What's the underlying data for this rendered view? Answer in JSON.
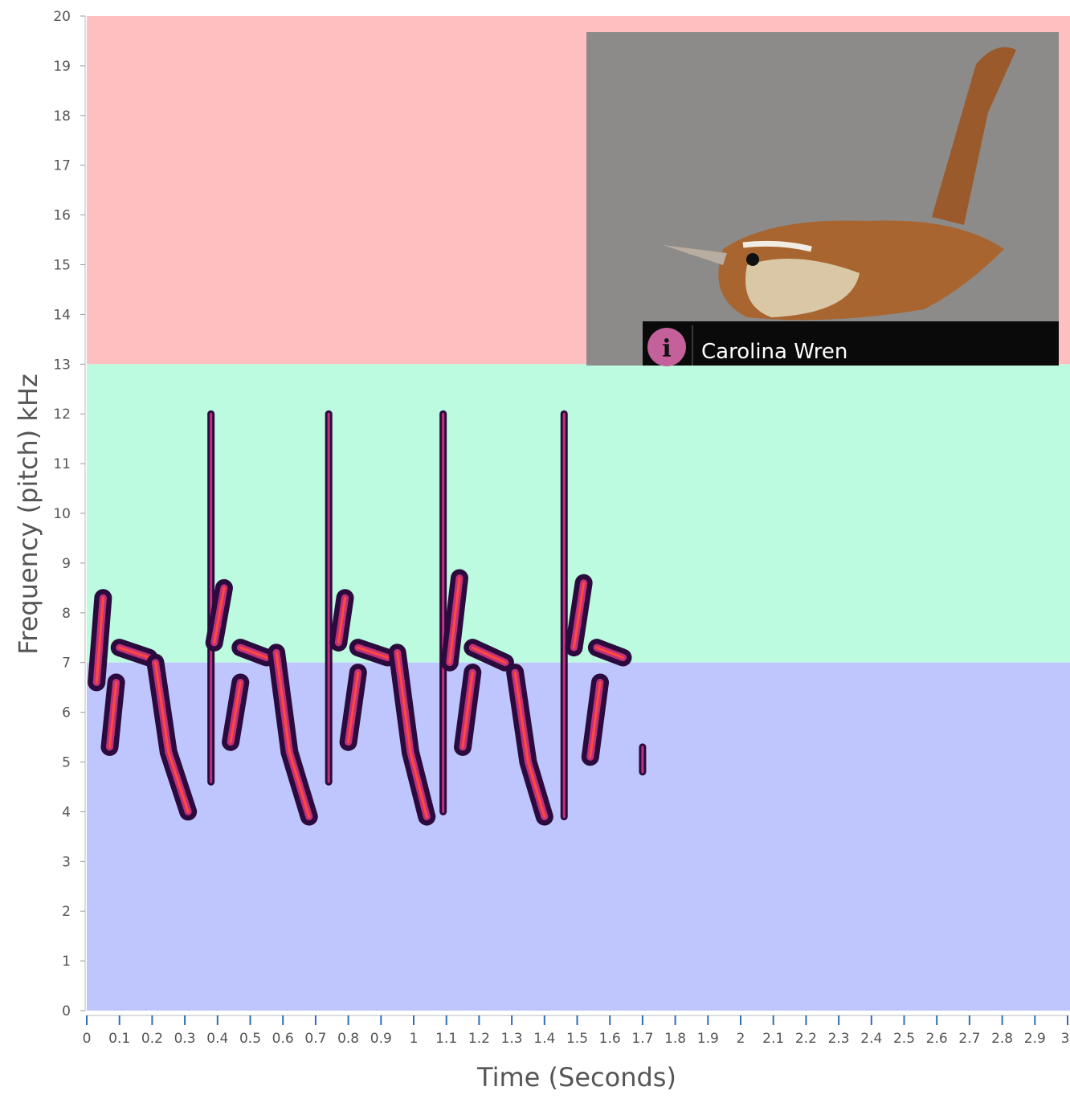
{
  "chart_data": {
    "type": "spectrogram",
    "x_label": "Time (Seconds)",
    "y_label": "Frequency (pitch) kHz",
    "xlim": [
      0,
      3
    ],
    "ylim": [
      0,
      20
    ],
    "xticks": [
      0,
      0.1,
      0.2,
      0.3,
      0.4,
      0.5,
      0.6,
      0.7,
      0.8,
      0.9,
      1,
      1.1,
      1.2,
      1.3,
      1.4,
      1.5,
      1.6,
      1.7,
      1.8,
      1.9,
      2,
      2.1,
      2.2,
      2.3,
      2.4,
      2.5,
      2.6,
      2.7,
      2.8,
      2.9,
      3
    ],
    "yticks": [
      0,
      1,
      2,
      3,
      4,
      5,
      6,
      7,
      8,
      9,
      10,
      11,
      12,
      13,
      14,
      15,
      16,
      17,
      18,
      19,
      20
    ],
    "bands": [
      {
        "from": 13,
        "to": 20,
        "color": "#fdbfbf"
      },
      {
        "from": 7,
        "to": 13,
        "color": "#bdfbe0"
      },
      {
        "from": 0,
        "to": 7,
        "color": "#bfc5fd"
      }
    ],
    "species": "Carolina Wren",
    "traces": [
      {
        "x": [
          0.03,
          0.05
        ],
        "y": [
          6.6,
          8.3
        ]
      },
      {
        "x": [
          0.1,
          0.19
        ],
        "y": [
          7.3,
          7.1
        ]
      },
      {
        "x": [
          0.09,
          0.07
        ],
        "y": [
          6.6,
          5.3
        ]
      },
      {
        "x": [
          0.21,
          0.25,
          0.31
        ],
        "y": [
          7.0,
          5.2,
          4.0
        ]
      },
      {
        "x": [
          0.38,
          0.38
        ],
        "y": [
          4.6,
          12
        ]
      },
      {
        "x": [
          0.39,
          0.42
        ],
        "y": [
          7.4,
          8.5
        ]
      },
      {
        "x": [
          0.47,
          0.55
        ],
        "y": [
          7.3,
          7.1
        ]
      },
      {
        "x": [
          0.47,
          0.44
        ],
        "y": [
          6.6,
          5.4
        ]
      },
      {
        "x": [
          0.58,
          0.62,
          0.68
        ],
        "y": [
          7.2,
          5.2,
          3.9
        ]
      },
      {
        "x": [
          0.74,
          0.74
        ],
        "y": [
          4.6,
          12
        ]
      },
      {
        "x": [
          0.77,
          0.79
        ],
        "y": [
          7.4,
          8.3
        ]
      },
      {
        "x": [
          0.83,
          0.92
        ],
        "y": [
          7.3,
          7.1
        ]
      },
      {
        "x": [
          0.83,
          0.8
        ],
        "y": [
          6.8,
          5.4
        ]
      },
      {
        "x": [
          0.95,
          0.99,
          1.04
        ],
        "y": [
          7.2,
          5.2,
          3.9
        ]
      },
      {
        "x": [
          1.09,
          1.09
        ],
        "y": [
          4.0,
          12
        ]
      },
      {
        "x": [
          1.11,
          1.14
        ],
        "y": [
          7.0,
          8.7
        ]
      },
      {
        "x": [
          1.18,
          1.28
        ],
        "y": [
          7.3,
          7.0
        ]
      },
      {
        "x": [
          1.18,
          1.15
        ],
        "y": [
          6.8,
          5.3
        ]
      },
      {
        "x": [
          1.31,
          1.35,
          1.4
        ],
        "y": [
          6.8,
          5.0,
          3.9
        ]
      },
      {
        "x": [
          1.46,
          1.46
        ],
        "y": [
          3.9,
          12
        ]
      },
      {
        "x": [
          1.49,
          1.52
        ],
        "y": [
          7.3,
          8.6
        ]
      },
      {
        "x": [
          1.56,
          1.64
        ],
        "y": [
          7.3,
          7.1
        ]
      },
      {
        "x": [
          1.57,
          1.54
        ],
        "y": [
          6.6,
          5.1
        ]
      },
      {
        "x": [
          1.7,
          1.7
        ],
        "y": [
          4.8,
          5.3
        ]
      }
    ]
  }
}
